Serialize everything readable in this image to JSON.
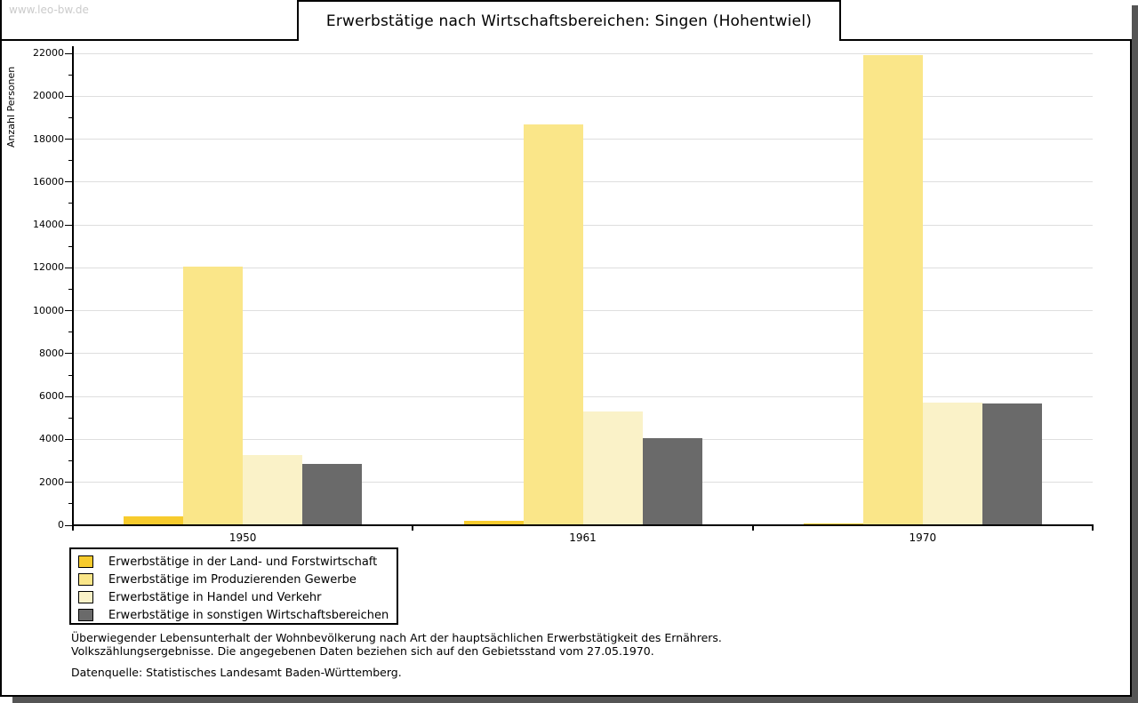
{
  "watermark": "www.leo-bw.de",
  "title": "Erwerbstätige nach Wirtschaftsbereichen: Singen (Hohentwiel)",
  "chart_data": {
    "type": "bar",
    "title": "Erwerbstätige nach Wirtschaftsbereichen: Singen (Hohentwiel)",
    "xlabel": "",
    "ylabel": "Anzahl Personen",
    "ylim": [
      0,
      22000
    ],
    "ytick_step": 2000,
    "yticks": [
      0,
      2000,
      4000,
      6000,
      8000,
      10000,
      12000,
      14000,
      16000,
      18000,
      20000,
      22000
    ],
    "grid": true,
    "legend_position": "bottom-left",
    "categories": [
      "1950",
      "1961",
      "1970"
    ],
    "series": [
      {
        "name": "Erwerbstätige in der Land- und Forstwirtschaft",
        "color": "#f7cb2d",
        "values": [
          400,
          200,
          100
        ]
      },
      {
        "name": "Erwerbstätige im Produzierenden Gewerbe",
        "color": "#fae689",
        "values": [
          12050,
          18700,
          21900
        ]
      },
      {
        "name": "Erwerbstätige in Handel und Verkehr",
        "color": "#faf2c8",
        "values": [
          3270,
          5300,
          5730
        ]
      },
      {
        "name": "Erwerbstätige in sonstigen Wirtschaftsbereichen",
        "color": "#6a6a6a",
        "values": [
          2850,
          4050,
          5690
        ]
      }
    ]
  },
  "footnotes": {
    "line1": "Überwiegender Lebensunterhalt der Wohnbevölkerung nach Art der hauptsächlichen Erwerbstätigkeit des Ernährers.",
    "line2": "Volkszählungsergebnisse. Die angegebenen Daten beziehen sich auf den Gebietsstand vom 27.05.1970.",
    "source": "Datenquelle: Statistisches Landesamt Baden-Württemberg."
  }
}
